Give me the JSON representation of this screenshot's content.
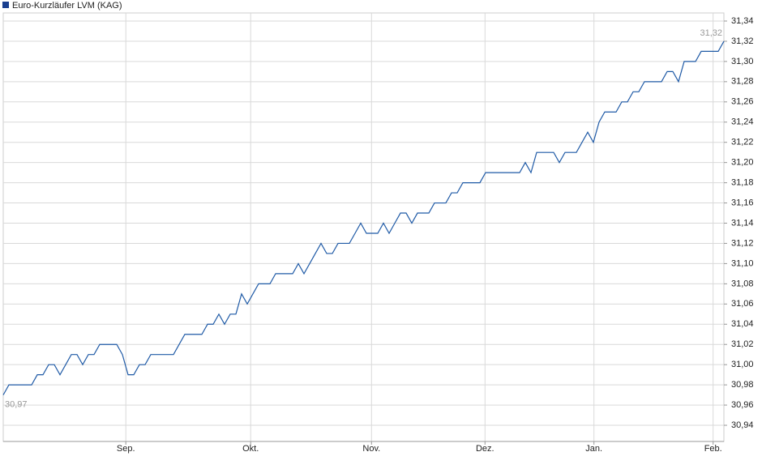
{
  "chart_data": {
    "type": "line",
    "series": [
      {
        "name": "Euro-Kurzläufer LVM (KAG)",
        "color": "#1f5aa6",
        "values": [
          30.97,
          30.98,
          30.98,
          30.98,
          30.98,
          30.98,
          30.99,
          30.99,
          31.0,
          31.0,
          30.99,
          31.0,
          31.01,
          31.01,
          31.0,
          31.01,
          31.01,
          31.02,
          31.02,
          31.02,
          31.02,
          31.01,
          30.99,
          30.99,
          31.0,
          31.0,
          31.01,
          31.01,
          31.01,
          31.01,
          31.01,
          31.02,
          31.03,
          31.03,
          31.03,
          31.03,
          31.04,
          31.04,
          31.05,
          31.04,
          31.05,
          31.05,
          31.07,
          31.06,
          31.07,
          31.08,
          31.08,
          31.08,
          31.09,
          31.09,
          31.09,
          31.09,
          31.1,
          31.09,
          31.1,
          31.11,
          31.12,
          31.11,
          31.11,
          31.12,
          31.12,
          31.12,
          31.13,
          31.14,
          31.13,
          31.13,
          31.13,
          31.14,
          31.13,
          31.14,
          31.15,
          31.15,
          31.14,
          31.15,
          31.15,
          31.15,
          31.16,
          31.16,
          31.16,
          31.17,
          31.17,
          31.18,
          31.18,
          31.18,
          31.18,
          31.19,
          31.19,
          31.19,
          31.19,
          31.19,
          31.19,
          31.19,
          31.2,
          31.19,
          31.21,
          31.21,
          31.21,
          31.21,
          31.2,
          31.21,
          31.21,
          31.21,
          31.22,
          31.23,
          31.22,
          31.24,
          31.25,
          31.25,
          31.25,
          31.26,
          31.26,
          31.27,
          31.27,
          31.28,
          31.28,
          31.28,
          31.28,
          31.29,
          31.29,
          31.28,
          31.3,
          31.3,
          31.3,
          31.31,
          31.31,
          31.31,
          31.31,
          31.32
        ]
      }
    ],
    "start_label": "30,97",
    "end_label": "31,32",
    "xlim": [
      0,
      127
    ],
    "xticks": [
      {
        "value": 21.6,
        "label": "Sep."
      },
      {
        "value": 43.6,
        "label": "Okt."
      },
      {
        "value": 64.9,
        "label": "Nov."
      },
      {
        "value": 84.9,
        "label": "Dez."
      },
      {
        "value": 104.1,
        "label": "Jan."
      },
      {
        "value": 125.1,
        "label": "Feb."
      }
    ],
    "ylim": [
      30.924,
      31.348
    ],
    "yticks": [
      {
        "value": 30.94,
        "label": "30,94"
      },
      {
        "value": 30.96,
        "label": "30,96"
      },
      {
        "value": 30.98,
        "label": "30,98"
      },
      {
        "value": 31.0,
        "label": "31,00"
      },
      {
        "value": 31.02,
        "label": "31,02"
      },
      {
        "value": 31.04,
        "label": "31,04"
      },
      {
        "value": 31.06,
        "label": "31,06"
      },
      {
        "value": 31.08,
        "label": "31,08"
      },
      {
        "value": 31.1,
        "label": "31,10"
      },
      {
        "value": 31.12,
        "label": "31,12"
      },
      {
        "value": 31.14,
        "label": "31,14"
      },
      {
        "value": 31.16,
        "label": "31,16"
      },
      {
        "value": 31.18,
        "label": "31,18"
      },
      {
        "value": 31.2,
        "label": "31,20"
      },
      {
        "value": 31.22,
        "label": "31,22"
      },
      {
        "value": 31.24,
        "label": "31,24"
      },
      {
        "value": 31.26,
        "label": "31,26"
      },
      {
        "value": 31.28,
        "label": "31,28"
      },
      {
        "value": 31.3,
        "label": "31,30"
      },
      {
        "value": 31.32,
        "label": "31,32"
      },
      {
        "value": 31.34,
        "label": "31,34"
      }
    ],
    "grid": true
  }
}
